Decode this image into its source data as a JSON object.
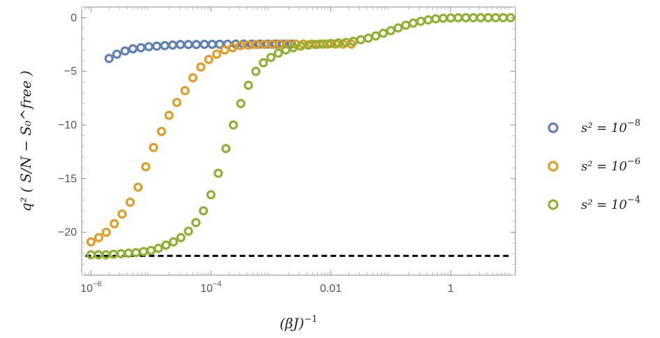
{
  "chart_data": {
    "type": "scatter",
    "xscale": "log",
    "xlim": [
      7e-07,
      12
    ],
    "ylim": [
      -24,
      1
    ],
    "x_ticks": [
      {
        "value": 1e-06,
        "label": "10",
        "exp": "−6"
      },
      {
        "value": 0.0001,
        "label": "10",
        "exp": "−4"
      },
      {
        "value": 0.01,
        "label": "0.01",
        "exp": ""
      },
      {
        "value": 1,
        "label": "1",
        "exp": ""
      }
    ],
    "y_ticks": [
      {
        "value": 0,
        "label": "0"
      },
      {
        "value": -5,
        "label": "−5"
      },
      {
        "value": -10,
        "label": "−10"
      },
      {
        "value": -15,
        "label": "−15"
      },
      {
        "value": -20,
        "label": "−20"
      }
    ],
    "xlabel": "(βJ)",
    "xlabel_sup": "−1",
    "ylabel": "q² ( S/N − S₀^free )",
    "reference_line": {
      "y": -22.2,
      "style": "dashed",
      "color": "#000000"
    },
    "legend_position": "right",
    "series": [
      {
        "name": "s² = 10",
        "name_sup": "−8",
        "color": "#5e81b5",
        "x": [
          2e-06,
          2.7e-06,
          3.7e-06,
          5e-06,
          6.8e-06,
          9.2e-06,
          1.25e-05,
          1.7e-05,
          2.3e-05,
          3.1e-05,
          4.2e-05,
          5.7e-05,
          7.8e-05,
          0.000105,
          0.00014,
          0.00019,
          0.00026,
          0.00035,
          0.00048,
          0.00065,
          0.00088,
          0.0012,
          0.0016,
          0.0022
        ],
        "y": [
          -3.8,
          -3.4,
          -3.1,
          -2.9,
          -2.8,
          -2.7,
          -2.65,
          -2.6,
          -2.55,
          -2.5,
          -2.5,
          -2.5,
          -2.48,
          -2.48,
          -2.47,
          -2.47,
          -2.46,
          -2.46,
          -2.46,
          -2.46,
          -2.46,
          -2.46,
          -2.46,
          -2.46
        ]
      },
      {
        "name": "s² = 10",
        "name_sup": "−6",
        "color": "#e19c24",
        "x": [
          1e-06,
          1.35e-06,
          1.8e-06,
          2.45e-06,
          3.3e-06,
          4.5e-06,
          6.1e-06,
          8.2e-06,
          1.1e-05,
          1.5e-05,
          2e-05,
          2.7e-05,
          3.7e-05,
          5e-05,
          6.8e-05,
          9.2e-05,
          0.000125,
          0.00017,
          0.00023,
          0.00031,
          0.00042,
          0.00057,
          0.00078,
          0.00105,
          0.0014,
          0.0019,
          0.0026,
          0.0035,
          0.0048,
          0.0065,
          0.0088,
          0.012,
          0.016,
          0.022
        ],
        "y": [
          -20.9,
          -20.5,
          -20.0,
          -19.2,
          -18.3,
          -17.2,
          -15.8,
          -13.9,
          -12.1,
          -10.6,
          -9.1,
          -7.9,
          -6.8,
          -5.6,
          -4.6,
          -3.9,
          -3.4,
          -3.0,
          -2.8,
          -2.6,
          -2.55,
          -2.5,
          -2.48,
          -2.47,
          -2.46,
          -2.46,
          -2.46,
          -2.46,
          -2.46,
          -2.46,
          -2.46,
          -2.46,
          -2.46,
          -2.46
        ]
      },
      {
        "name": "s² = 10",
        "name_sup": "−4",
        "color": "#8fb131",
        "x": [
          1e-06,
          1.33e-06,
          1.78e-06,
          2.37e-06,
          3.16e-06,
          4.22e-06,
          5.62e-06,
          7.5e-06,
          1e-05,
          1.33e-05,
          1.78e-05,
          2.37e-05,
          3.16e-05,
          4.22e-05,
          5.62e-05,
          7.5e-05,
          0.0001,
          0.000133,
          0.000178,
          0.000237,
          0.000316,
          0.000422,
          0.000562,
          0.00075,
          0.001,
          0.00133,
          0.00178,
          0.00237,
          0.00316,
          0.00422,
          0.00562,
          0.0075,
          0.01,
          0.0133,
          0.0178,
          0.0237,
          0.0316,
          0.0422,
          0.0562,
          0.075,
          0.1,
          0.133,
          0.178,
          0.237,
          0.316,
          0.422,
          0.562,
          0.75,
          1,
          1.33,
          1.78,
          2.37,
          3.16,
          4.22,
          5.62,
          7.5,
          10
        ],
        "y": [
          -22.1,
          -22.1,
          -22.1,
          -22.05,
          -22.0,
          -21.95,
          -21.9,
          -21.8,
          -21.7,
          -21.5,
          -21.2,
          -20.9,
          -20.5,
          -19.9,
          -19.1,
          -18.0,
          -16.5,
          -14.5,
          -12.2,
          -10.0,
          -8.0,
          -6.3,
          -5.0,
          -4.2,
          -3.7,
          -3.3,
          -3.0,
          -2.8,
          -2.65,
          -2.55,
          -2.5,
          -2.45,
          -2.4,
          -2.35,
          -2.3,
          -2.2,
          -2.05,
          -1.9,
          -1.7,
          -1.45,
          -1.2,
          -0.95,
          -0.7,
          -0.5,
          -0.33,
          -0.2,
          -0.1,
          -0.05,
          -0.02,
          0,
          0,
          0,
          0,
          0,
          0,
          0,
          0
        ]
      }
    ]
  }
}
